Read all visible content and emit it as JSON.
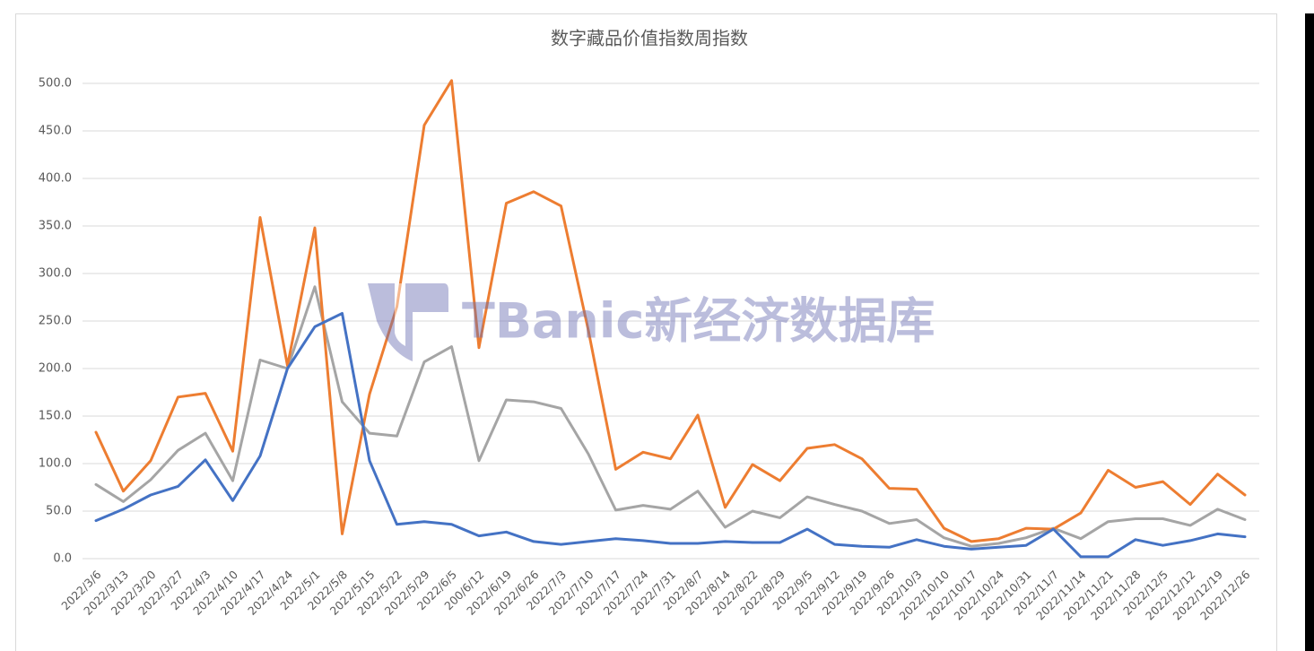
{
  "chart_data": {
    "type": "line",
    "title": "数字藏品价值指数周指数",
    "watermark": "TBanic新经济数据库",
    "categories": [
      "2022/3/6",
      "2022/3/13",
      "2022/3/20",
      "2022/3/27",
      "2022/4/3",
      "2022/4/10",
      "2022/4/17",
      "2022/4/24",
      "2022/5/1",
      "2022/5/8",
      "2022/5/15",
      "2022/5/22",
      "2022/5/29",
      "2022/6/5",
      "200/6/12",
      "2022/6/19",
      "2022/6/26",
      "2022/7/3",
      "2022/7/10",
      "2022/7/17",
      "2022/7/24",
      "2022/7/31",
      "2022/8/7",
      "2022/8/14",
      "2022/8/22",
      "2022/8/29",
      "2022/9/5",
      "2022/9/12",
      "2022/9/19",
      "2022/9/26",
      "2022/10/3",
      "2022/10/10",
      "2022/10/17",
      "2022/10/24",
      "2022/10/31",
      "2022/11/7",
      "2022/11/14",
      "2022/11/21",
      "2022/11/28",
      "2022/12/5",
      "2022/12/12",
      "2022/12/19",
      "2022/12/26"
    ],
    "series": [
      {
        "color": "#a5a5a5",
        "values": [
          78,
          60,
          83,
          114,
          132,
          82,
          209,
          200,
          286,
          165,
          132,
          129,
          207,
          223,
          103,
          167,
          165,
          158,
          110,
          51,
          56,
          52,
          71,
          33,
          50,
          43,
          65,
          57,
          50,
          37,
          41,
          22,
          13,
          16,
          22,
          32,
          21,
          39,
          42,
          42,
          35,
          52,
          41
        ]
      },
      {
        "color": "#ed7d31",
        "values": [
          133,
          71,
          103,
          170,
          174,
          113,
          359,
          203,
          348,
          26,
          173,
          265,
          456,
          503,
          222,
          374,
          386,
          371,
          240,
          94,
          112,
          105,
          151,
          54,
          99,
          82,
          116,
          120,
          105,
          74,
          73,
          32,
          18,
          21,
          32,
          31,
          48,
          93,
          75,
          81,
          57,
          89,
          67
        ]
      },
      {
        "color": "#4472c4",
        "values": [
          40,
          52,
          67,
          76,
          104,
          61,
          108,
          200,
          244,
          258,
          103,
          36,
          39,
          36,
          24,
          28,
          18,
          15,
          18,
          21,
          19,
          16,
          16,
          18,
          17,
          17,
          31,
          15,
          13,
          12,
          20,
          13,
          10,
          12,
          14,
          31,
          2,
          2,
          20,
          14,
          19,
          26,
          23
        ]
      }
    ],
    "ylim": [
      0,
      500
    ],
    "yticks": [
      {
        "value": 0,
        "label": "0.0"
      },
      {
        "value": 50,
        "label": "50.0"
      },
      {
        "value": 100,
        "label": "100.0"
      },
      {
        "value": 150,
        "label": "150.0"
      },
      {
        "value": 200,
        "label": "200.0"
      },
      {
        "value": 250,
        "label": "250.0"
      },
      {
        "value": 300,
        "label": "300.0"
      },
      {
        "value": 350,
        "label": "350.0"
      },
      {
        "value": 400,
        "label": "400.0"
      },
      {
        "value": 450,
        "label": "450.0"
      },
      {
        "value": 500,
        "label": "500.0"
      }
    ],
    "grid": true
  }
}
